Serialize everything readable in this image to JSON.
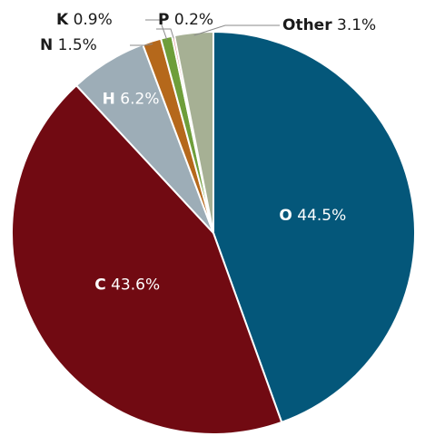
{
  "chart_data": {
    "type": "pie",
    "title": "",
    "start_angle_deg": 0,
    "direction": "clockwise",
    "slices": [
      {
        "label": "O",
        "value": 44.5,
        "display": "44.5%",
        "color": "#04577a",
        "text_color": "#ffffff"
      },
      {
        "label": "C",
        "value": 43.6,
        "display": "43.6%",
        "color": "#710a12",
        "text_color": "#ffffff"
      },
      {
        "label": "H",
        "value": 6.2,
        "display": "6.2%",
        "color": "#9dadb7",
        "text_color": "#ffffff"
      },
      {
        "label": "N",
        "value": 1.5,
        "display": "1.5%",
        "color": "#b5681b",
        "text_color": "#1a1a1a"
      },
      {
        "label": "K",
        "value": 0.9,
        "display": "0.9%",
        "color": "#6e9e3a",
        "text_color": "#1a1a1a"
      },
      {
        "label": "P",
        "value": 0.2,
        "display": "0.2%",
        "color": "#d98b8b",
        "text_color": "#1a1a1a"
      },
      {
        "label": "Other",
        "value": 3.1,
        "display": "3.1%",
        "color": "#a6b094",
        "text_color": "#1a1a1a"
      }
    ]
  }
}
